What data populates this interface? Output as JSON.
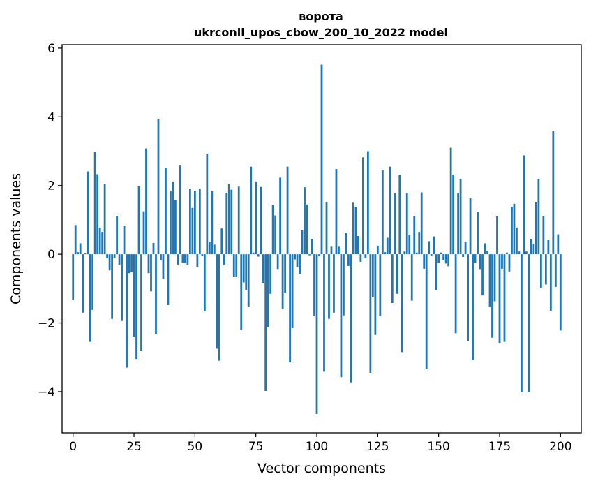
{
  "chart_data": {
    "type": "bar",
    "title": "ворота",
    "subtitle": "ukrconll_upos_cbow_200_10_2022 model",
    "xlabel": "Vector components",
    "ylabel": "Components values",
    "xlim": [
      -4.5,
      208.5
    ],
    "ylim": [
      -5.2,
      6.1
    ],
    "xticks": [
      0,
      25,
      50,
      75,
      100,
      125,
      150,
      175,
      200
    ],
    "yticks": [
      -4,
      -2,
      0,
      2,
      4,
      6
    ],
    "xtick_labels": [
      "0",
      "25",
      "50",
      "75",
      "100",
      "125",
      "150",
      "175",
      "200"
    ],
    "ytick_labels": [
      "−4",
      "−2",
      "0",
      "2",
      "4",
      "6"
    ],
    "grid": false,
    "bar_color": "#1f77b4",
    "values": [
      -1.33,
      0.85,
      0.06,
      0.32,
      -1.7,
      0.02,
      2.41,
      -2.55,
      -1.62,
      2.98,
      2.33,
      0.77,
      0.65,
      2.05,
      -0.12,
      -0.47,
      -1.88,
      -0.1,
      1.12,
      -0.3,
      -1.92,
      0.82,
      -3.3,
      -0.55,
      -0.52,
      -2.4,
      -3.05,
      1.98,
      -2.82,
      1.25,
      3.08,
      -0.55,
      -1.08,
      0.33,
      -2.32,
      3.93,
      -0.17,
      -0.72,
      2.52,
      -1.48,
      1.83,
      2.12,
      1.57,
      -0.3,
      2.58,
      -0.25,
      -0.25,
      -0.3,
      1.9,
      1.35,
      1.85,
      -0.37,
      1.9,
      -0.05,
      -1.66,
      2.93,
      0.36,
      1.83,
      0.28,
      -2.75,
      -3.1,
      0.75,
      -0.3,
      1.78,
      2.05,
      1.88,
      -0.65,
      -0.66,
      1.97,
      -2.2,
      -0.82,
      -1.05,
      -1.52,
      2.55,
      0.05,
      2.12,
      -0.07,
      1.96,
      -0.83,
      -3.98,
      -2.12,
      -1.15,
      1.43,
      1.13,
      -0.43,
      2.23,
      -1.58,
      -1.12,
      2.55,
      -3.15,
      -2.15,
      -0.15,
      -0.37,
      -0.58,
      0.7,
      1.95,
      1.45,
      -0.03,
      0.45,
      -1.8,
      -4.65,
      -0.06,
      5.52,
      -3.42,
      1.52,
      -1.88,
      0.22,
      -1.7,
      2.48,
      0.22,
      -3.58,
      -1.78,
      0.63,
      -0.34,
      -3.73,
      1.5,
      1.37,
      0.53,
      -0.22,
      2.82,
      -0.12,
      3.0,
      -3.45,
      -1.25,
      -2.35,
      0.25,
      -1.8,
      2.45,
      0.06,
      0.48,
      2.55,
      -1.42,
      1.77,
      -1.15,
      2.3,
      -2.85,
      0.08,
      1.78,
      0.55,
      -1.35,
      1.1,
      0.05,
      0.65,
      1.8,
      -0.42,
      -3.35,
      0.38,
      -0.05,
      0.52,
      -1.05,
      -0.25,
      0.05,
      -0.18,
      -0.27,
      -0.35,
      3.1,
      2.32,
      -2.3,
      1.78,
      2.2,
      -0.08,
      0.37,
      -2.52,
      1.65,
      -3.08,
      -0.25,
      1.23,
      -0.43,
      -1.2,
      0.32,
      0.1,
      -1.52,
      -2.43,
      -1.37,
      1.1,
      -2.58,
      -0.42,
      -2.55,
      0.05,
      -0.5,
      1.38,
      1.47,
      0.78,
      0.08,
      -4.0,
      2.88,
      0.08,
      -4.02,
      0.45,
      0.3,
      1.52,
      2.2,
      -0.98,
      1.12,
      -0.88,
      0.43,
      -1.65,
      3.58,
      -0.95,
      0.58,
      -2.22
    ]
  }
}
